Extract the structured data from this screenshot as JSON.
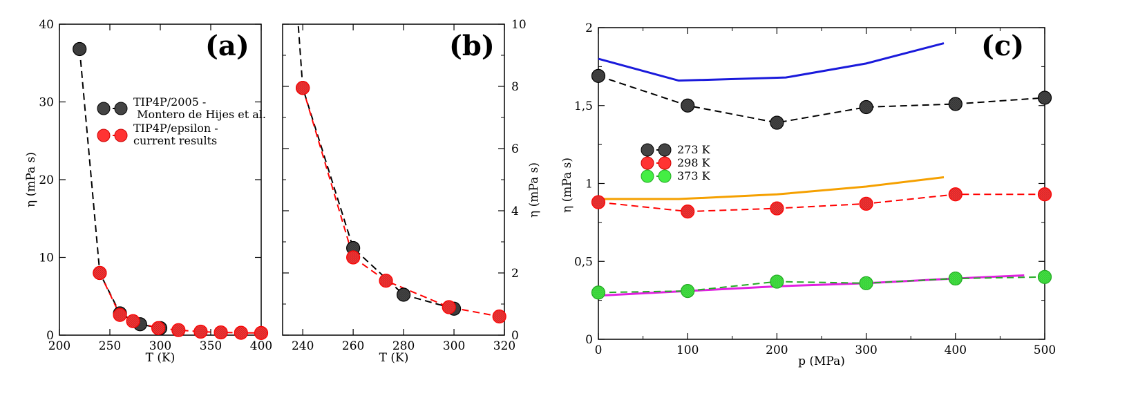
{
  "chart_data": [
    {
      "type": "scatter",
      "panel_label": "(a)",
      "xlabel": "T (K)",
      "ylabel": "η (mPa s)",
      "xlim": [
        200,
        400
      ],
      "ylim": [
        0,
        40
      ],
      "xticks": [
        "200",
        "250",
        "300",
        "350",
        "400"
      ],
      "yticks": [
        "0",
        "10",
        "20",
        "30",
        "40"
      ],
      "legend_position": "upper-right",
      "series": [
        {
          "name": "TIP4P/2005 -",
          "name_line2": " Montero de Hijes et al.",
          "color": "#000000",
          "fill": "#444444",
          "x": [
            220,
            240,
            260,
            280,
            300
          ],
          "y": [
            36.8,
            8.0,
            2.8,
            1.4,
            0.9
          ]
        },
        {
          "name": "TIP4P/epsilon -",
          "name_line2": "current results",
          "color": "#ff0000",
          "fill": "#ff3333",
          "x": [
            240,
            260,
            273,
            298,
            318,
            340,
            360,
            380,
            400
          ],
          "y": [
            8.0,
            2.6,
            1.8,
            0.9,
            0.65,
            0.45,
            0.35,
            0.3,
            0.28
          ]
        }
      ]
    },
    {
      "type": "scatter",
      "panel_label": "(b)",
      "xlabel": "T (K)",
      "ylabel": "η (mPa s)",
      "xlim": [
        232,
        320
      ],
      "ylim": [
        0,
        10
      ],
      "xticks": [
        "240",
        "260",
        "280",
        "300",
        "320"
      ],
      "yticks": [
        "0",
        "2",
        "4",
        "6",
        "8",
        "10"
      ],
      "y_axis_side": "right",
      "series": [
        {
          "name": "TIP4P/2005",
          "color": "#000000",
          "fill": "#444444",
          "x": [
            240,
            260,
            280,
            300
          ],
          "y": [
            7.95,
            2.8,
            1.3,
            0.85
          ]
        },
        {
          "name": "TIP4P/epsilon",
          "color": "#ff0000",
          "fill": "#ff3333",
          "x": [
            240,
            260,
            273,
            298,
            318
          ],
          "y": [
            7.95,
            2.5,
            1.75,
            0.9,
            0.6
          ]
        }
      ]
    },
    {
      "type": "line",
      "panel_label": "(c)",
      "xlabel": "p (MPa)",
      "ylabel": "η (mPa s)",
      "xlim": [
        0,
        500
      ],
      "ylim": [
        0,
        2
      ],
      "xticks": [
        "0",
        "100",
        "200",
        "300",
        "400",
        "500"
      ],
      "yticks": [
        "0",
        "0,5",
        "1",
        "1,5",
        "2"
      ],
      "legend_position": "middle-left",
      "series": [
        {
          "name": "273 K",
          "color": "#000000",
          "fill": "#444444",
          "x": [
            0,
            100,
            200,
            300,
            400,
            500
          ],
          "y": [
            1.69,
            1.5,
            1.39,
            1.49,
            1.51,
            1.55
          ]
        },
        {
          "name": "298 K",
          "color": "#ff0000",
          "fill": "#ff3333",
          "x": [
            0,
            100,
            200,
            300,
            400,
            500
          ],
          "y": [
            0.88,
            0.82,
            0.84,
            0.87,
            0.93,
            0.93
          ]
        },
        {
          "name": "373 K",
          "color": "#22aa22",
          "fill": "#44ee44",
          "x": [
            0,
            100,
            200,
            300,
            400,
            500
          ],
          "y": [
            0.3,
            0.31,
            0.37,
            0.36,
            0.39,
            0.4
          ]
        }
      ],
      "reference_curves": [
        {
          "color": "#1a1adb",
          "x": [
            0,
            90,
            210,
            300,
            387
          ],
          "y": [
            1.8,
            1.66,
            1.68,
            1.77,
            1.9
          ]
        },
        {
          "color": "#f5a000",
          "x": [
            0,
            90,
            200,
            300,
            387
          ],
          "y": [
            0.9,
            0.9,
            0.93,
            0.98,
            1.04
          ]
        },
        {
          "color": "#e020e0",
          "x": [
            0,
            100,
            200,
            300,
            400,
            477
          ],
          "y": [
            0.28,
            0.31,
            0.34,
            0.36,
            0.39,
            0.41
          ]
        }
      ]
    }
  ]
}
